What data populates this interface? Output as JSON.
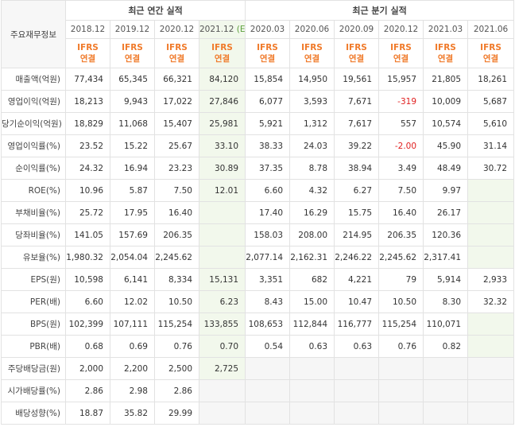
{
  "header": {
    "corner": "주요재무정보",
    "annual_title": "최근 연간 실적",
    "quarter_title": "최근 분기 실적",
    "periods": [
      "2018.12",
      "2019.12",
      "2020.12",
      "2021.12",
      "2020.03",
      "2020.06",
      "2020.09",
      "2020.12",
      "2021.03",
      "2021.06"
    ],
    "estimate_mark": "(E)",
    "ifrs_line1": "IFRS",
    "ifrs_line2": "연결"
  },
  "rows": [
    {
      "label": "매출액(억원)",
      "values": [
        "77,434",
        "65,345",
        "66,321",
        "84,120",
        "15,854",
        "14,950",
        "19,561",
        "15,957",
        "21,805",
        "18,261"
      ]
    },
    {
      "label": "영업이익(억원)",
      "values": [
        "18,213",
        "9,943",
        "17,022",
        "27,846",
        "6,077",
        "3,593",
        "7,671",
        "-319",
        "10,009",
        "5,687"
      ]
    },
    {
      "label": "당기순이익(억원)",
      "values": [
        "18,829",
        "11,068",
        "15,407",
        "25,981",
        "5,921",
        "1,312",
        "7,617",
        "557",
        "10,574",
        "5,610"
      ]
    },
    {
      "label": "영업이익률(%)",
      "values": [
        "23.52",
        "15.22",
        "25.67",
        "33.10",
        "38.33",
        "24.03",
        "39.22",
        "-2.00",
        "45.90",
        "31.14"
      ]
    },
    {
      "label": "순이익률(%)",
      "values": [
        "24.32",
        "16.94",
        "23.23",
        "30.89",
        "37.35",
        "8.78",
        "38.94",
        "3.49",
        "48.49",
        "30.72"
      ]
    },
    {
      "label": "ROE(%)",
      "values": [
        "10.96",
        "5.87",
        "7.50",
        "12.01",
        "6.60",
        "4.32",
        "6.27",
        "7.50",
        "9.97",
        ""
      ]
    },
    {
      "label": "부채비율(%)",
      "values": [
        "25.72",
        "17.95",
        "16.40",
        "",
        "17.40",
        "16.29",
        "15.75",
        "16.40",
        "26.17",
        ""
      ]
    },
    {
      "label": "당좌비율(%)",
      "values": [
        "141.05",
        "157.69",
        "206.35",
        "",
        "158.03",
        "208.00",
        "214.95",
        "206.35",
        "120.36",
        ""
      ]
    },
    {
      "label": "유보율(%)",
      "values": [
        "1,980.32",
        "2,054.04",
        "2,245.62",
        "",
        "2,077.14",
        "2,162.31",
        "2,246.22",
        "2,245.62",
        "2,317.41",
        ""
      ]
    },
    {
      "label": "EPS(원)",
      "values": [
        "10,598",
        "6,141",
        "8,334",
        "15,131",
        "3,351",
        "682",
        "4,221",
        "79",
        "5,914",
        "2,933"
      ]
    },
    {
      "label": "PER(배)",
      "values": [
        "6.60",
        "12.02",
        "10.50",
        "6.23",
        "8.43",
        "15.00",
        "10.47",
        "10.50",
        "8.30",
        "32.32"
      ]
    },
    {
      "label": "BPS(원)",
      "values": [
        "102,399",
        "107,111",
        "115,254",
        "133,855",
        "108,653",
        "112,844",
        "116,777",
        "115,254",
        "110,071",
        ""
      ]
    },
    {
      "label": "PBR(배)",
      "values": [
        "0.68",
        "0.69",
        "0.76",
        "0.70",
        "0.54",
        "0.63",
        "0.63",
        "0.76",
        "0.82",
        ""
      ]
    },
    {
      "label": "주당배당금(원)",
      "values": [
        "2,000",
        "2,200",
        "2,500",
        "2,725",
        "",
        "",
        "",
        "",
        "",
        ""
      ]
    },
    {
      "label": "시가배당률(%)",
      "values": [
        "2.86",
        "2.98",
        "2.86",
        "",
        "",
        "",
        "",
        "",
        "",
        ""
      ]
    },
    {
      "label": "배당성향(%)",
      "values": [
        "18.87",
        "35.82",
        "29.99",
        "",
        "",
        "",
        "",
        "",
        "",
        ""
      ]
    }
  ],
  "colors": {
    "ifrs": "#f07a2a",
    "negative": "#e02020",
    "estimate_bg": "#f2f8ec"
  }
}
